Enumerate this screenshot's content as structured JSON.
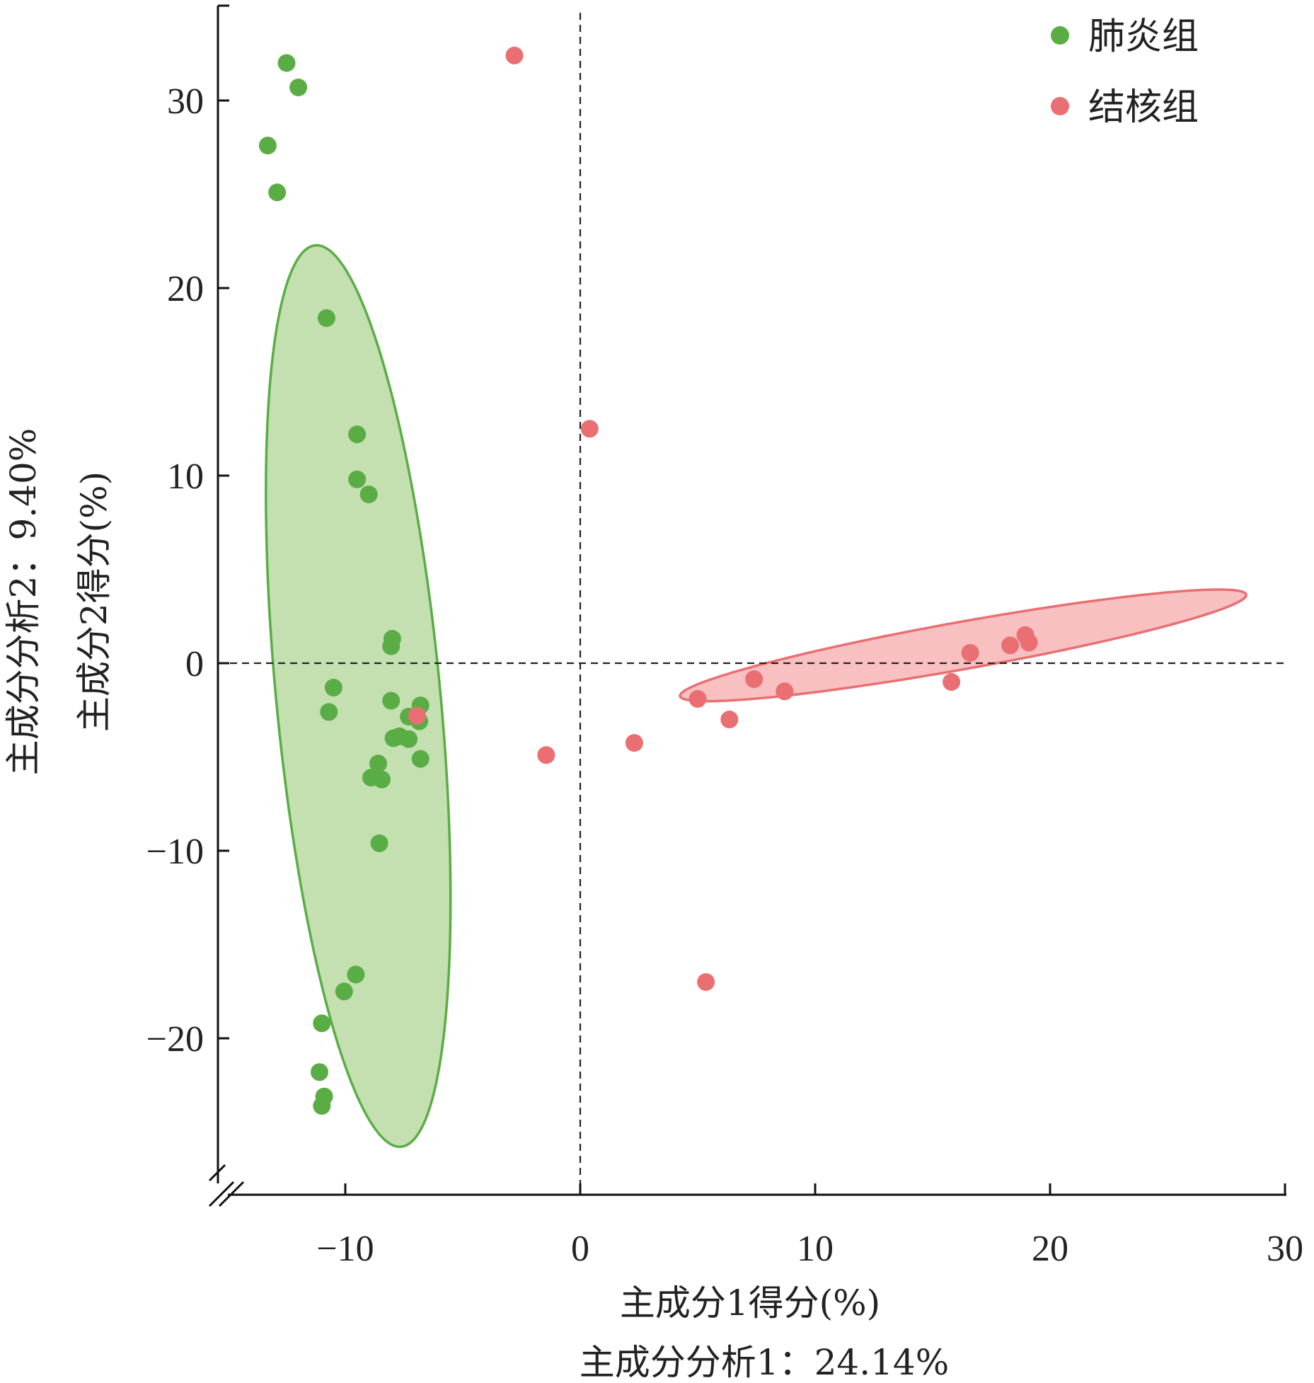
{
  "chart_data": {
    "type": "scatter",
    "xlabel": "主成分1得分(%)",
    "xlabel_sub": "主成分分析1：24.14%",
    "ylabel": "主成分2得分(%)",
    "ylabel_sub": "主成分分析2：9.40%",
    "xlim": [
      -15,
      30
    ],
    "ylim": [
      -28,
      35
    ],
    "x_ticks": [
      -10,
      0,
      10,
      20,
      30
    ],
    "y_ticks": [
      -20,
      -10,
      0,
      10,
      20,
      30
    ],
    "x_tick_labels": [
      "−10",
      "0",
      "10",
      "20",
      "30"
    ],
    "y_tick_labels": [
      "−20",
      "−10",
      "0",
      "10",
      "20",
      "30"
    ],
    "reference_lines": {
      "x": 0,
      "y": 0,
      "style": "dashed"
    },
    "legend_position": "top-right",
    "series": [
      {
        "name": "肺炎组",
        "color": "#5aad45",
        "fill": "#c4dfb0",
        "points": [
          [
            -12.5,
            32.0
          ],
          [
            -12.0,
            30.7
          ],
          [
            -13.3,
            27.6
          ],
          [
            -12.9,
            25.1
          ],
          [
            -10.8,
            18.4
          ],
          [
            -9.5,
            12.2
          ],
          [
            -9.5,
            9.8
          ],
          [
            -9.0,
            9.0
          ],
          [
            -8.0,
            1.3
          ],
          [
            -8.05,
            0.9
          ],
          [
            -10.5,
            -1.3
          ],
          [
            -10.7,
            -2.6
          ],
          [
            -8.05,
            -2.0
          ],
          [
            -6.8,
            -2.25
          ],
          [
            -7.3,
            -2.85
          ],
          [
            -6.85,
            -3.1
          ],
          [
            -7.95,
            -4.0
          ],
          [
            -7.7,
            -3.9
          ],
          [
            -7.3,
            -4.05
          ],
          [
            -6.8,
            -5.1
          ],
          [
            -8.6,
            -5.35
          ],
          [
            -8.9,
            -6.1
          ],
          [
            -8.45,
            -6.2
          ],
          [
            -8.55,
            -9.6
          ],
          [
            -9.55,
            -16.6
          ],
          [
            -10.05,
            -17.5
          ],
          [
            -11.0,
            -19.2
          ],
          [
            -11.1,
            -21.8
          ],
          [
            -10.9,
            -23.1
          ],
          [
            -11.0,
            -23.6
          ]
        ],
        "ellipse": {
          "center": [
            -9.45,
            -1.75
          ],
          "semi_axis_major": 24.1,
          "semi_axis_minor": 3.5,
          "angle_deg": 94.3
        }
      },
      {
        "name": "结核组",
        "color": "#e96f73",
        "fill": "#f8c0c0",
        "points": [
          [
            -2.8,
            32.4
          ],
          [
            0.4,
            12.5
          ],
          [
            -6.95,
            -2.8
          ],
          [
            -1.45,
            -4.9
          ],
          [
            2.3,
            -4.25
          ],
          [
            5.35,
            -17.0
          ],
          [
            5.0,
            -1.9
          ],
          [
            6.35,
            -3.0
          ],
          [
            7.4,
            -0.85
          ],
          [
            8.7,
            -1.5
          ],
          [
            15.8,
            -1.0
          ],
          [
            16.6,
            0.55
          ],
          [
            18.3,
            0.95
          ],
          [
            18.95,
            1.5
          ],
          [
            19.1,
            1.1
          ]
        ],
        "ellipse": {
          "center": [
            16.3,
            0.95
          ],
          "semi_axis_major": 12.35,
          "semi_axis_minor": 1.25,
          "angle_deg": 12.7
        }
      }
    ]
  }
}
